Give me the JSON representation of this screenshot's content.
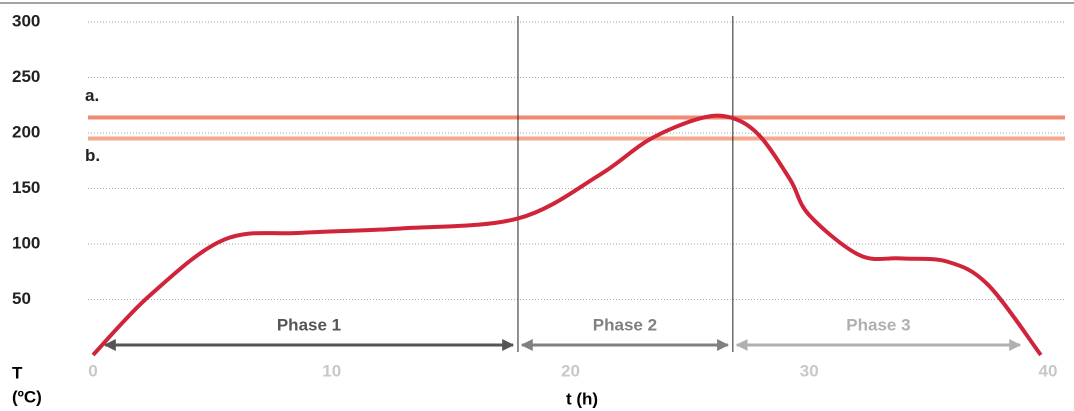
{
  "chart_data": {
    "type": "line",
    "y_label": "T",
    "y_unit": "(ºC)",
    "x_label": "t (h)",
    "xlim": [
      0,
      40
    ],
    "xticks": [
      0,
      10,
      20,
      30,
      40
    ],
    "ylim": [
      0,
      300
    ],
    "yticks": [
      50,
      100,
      150,
      200,
      250,
      300
    ],
    "grid": true,
    "series": [
      {
        "name": "T",
        "color": "#d0243a",
        "x": [
          0,
          2.4,
          5.5,
          8.7,
          12.9,
          17.8,
          21.2,
          23.3,
          25.4,
          26.7,
          27.9,
          29.2,
          30,
          32.1,
          33.8,
          35.8,
          37.5,
          39.7
        ],
        "values": [
          0,
          54,
          104,
          110,
          114,
          123,
          162,
          194,
          213,
          214,
          198,
          158,
          126,
          90,
          87,
          84,
          63,
          0
        ]
      }
    ],
    "reference_lines": [
      {
        "label": "a.",
        "value": 214,
        "color": "#f08a70"
      },
      {
        "label": "b.",
        "value": 195,
        "color": "#f5a88e"
      }
    ],
    "boundaries": [
      17.8,
      26.8
    ],
    "phases": [
      {
        "label": "Phase 1",
        "color": "#555555"
      },
      {
        "label": "Phase 2",
        "color": "#808080"
      },
      {
        "label": "Phase 3",
        "color": "#b0b0b0"
      }
    ]
  }
}
